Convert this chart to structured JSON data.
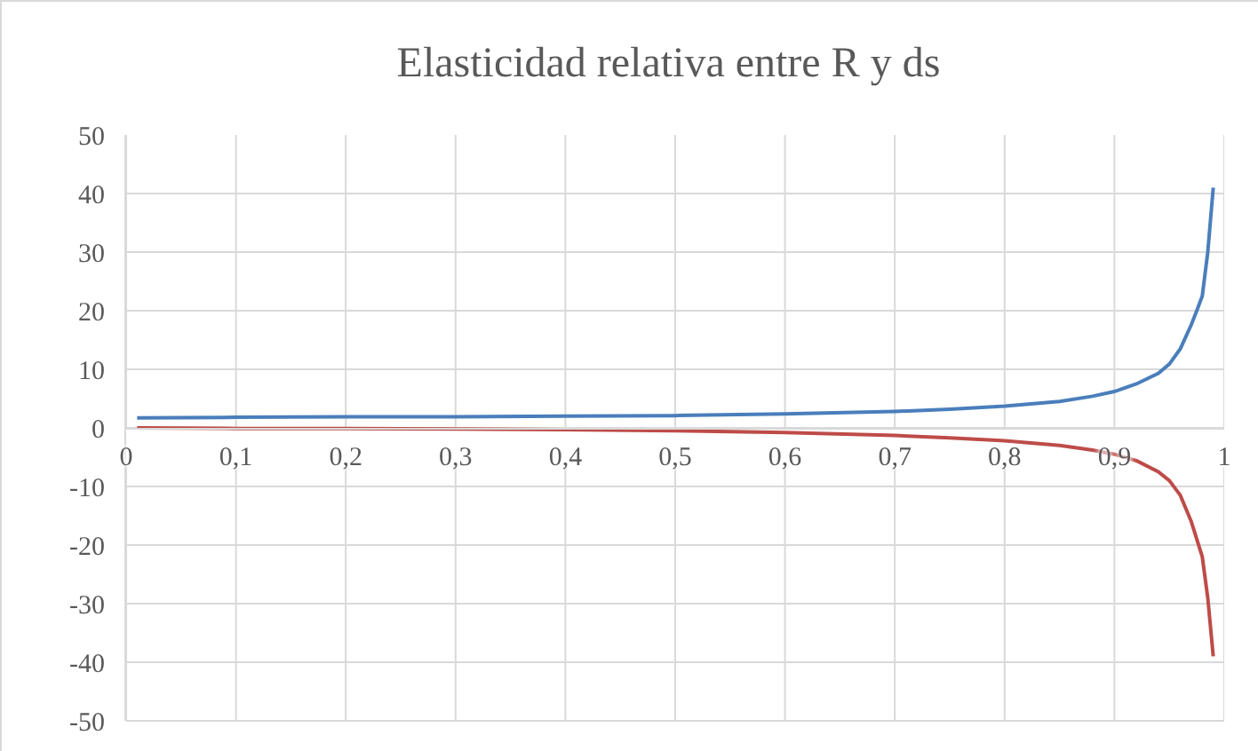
{
  "chart_data": {
    "type": "line",
    "title": "Elasticidad relativa entre R y ds",
    "x": [
      0.01,
      0.1,
      0.2,
      0.3,
      0.4,
      0.5,
      0.6,
      0.7,
      0.75,
      0.8,
      0.85,
      0.88,
      0.9,
      0.92,
      0.94,
      0.95,
      0.96,
      0.97,
      0.975,
      0.98,
      0.985,
      0.99
    ],
    "series": [
      {
        "color": "#4a7ebb",
        "values": [
          1.7,
          1.8,
          1.9,
          1.9,
          2.0,
          2.1,
          2.4,
          2.8,
          3.2,
          3.7,
          4.5,
          5.4,
          6.2,
          7.5,
          9.3,
          10.9,
          13.5,
          17.6,
          20,
          22.5,
          30,
          41
        ]
      },
      {
        "color": "#be4b48",
        "values": [
          0,
          -0.1,
          -0.1,
          -0.2,
          -0.3,
          -0.5,
          -0.8,
          -1.3,
          -1.7,
          -2.2,
          -3.0,
          -3.8,
          -4.5,
          -5.6,
          -7.5,
          -9,
          -11.5,
          -16,
          -19,
          -22,
          -29,
          -39
        ]
      }
    ],
    "xlim": [
      0,
      1
    ],
    "xticks": [
      0,
      {
        "value": 0.1,
        "label": "0,1"
      },
      {
        "value": 0.2,
        "label": "0,2"
      },
      {
        "value": 0.3,
        "label": "0,3"
      },
      {
        "value": 0.4,
        "label": "0,4"
      },
      {
        "value": 0.5,
        "label": "0,5"
      },
      {
        "value": 0.6,
        "label": "0,6"
      },
      {
        "value": 0.7,
        "label": "0,7"
      },
      {
        "value": 0.8,
        "label": "0,8"
      },
      {
        "value": 0.9,
        "label": "0,9"
      },
      1
    ],
    "ylim": [
      -50,
      50
    ],
    "yticks": [
      -50,
      -40,
      -30,
      -20,
      -10,
      0,
      10,
      20,
      30,
      40,
      50
    ],
    "grid": true,
    "legend": false,
    "marker": "none",
    "line_style": "solid"
  }
}
